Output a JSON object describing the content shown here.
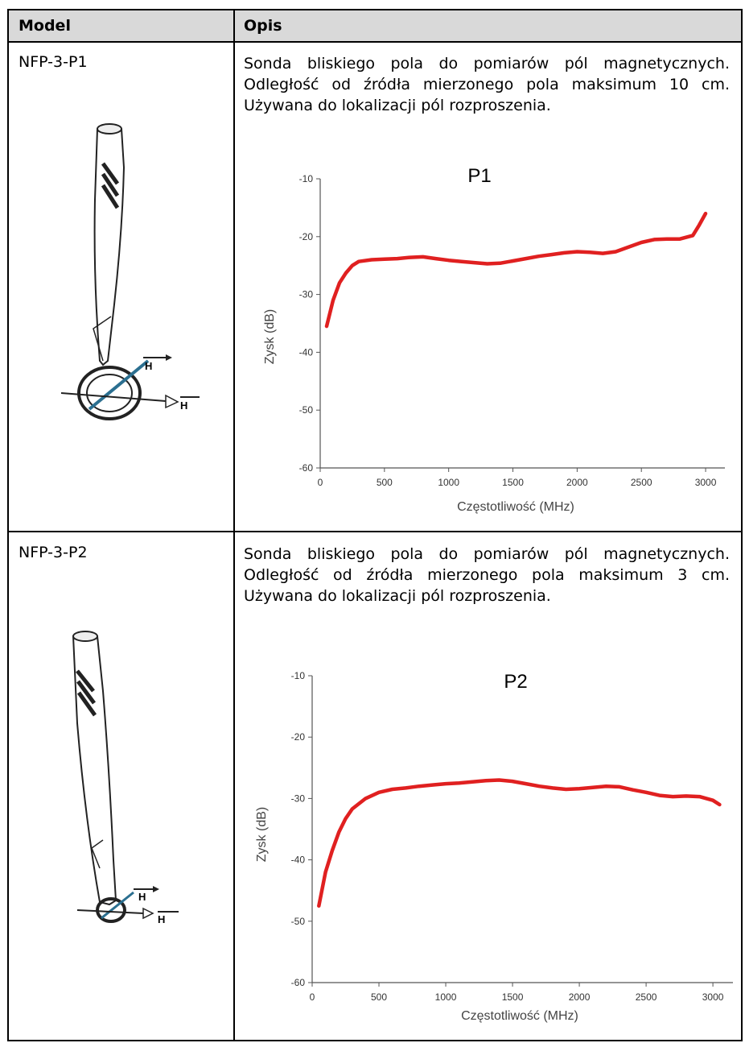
{
  "table": {
    "headers": {
      "model": "Model",
      "description": "Opis"
    },
    "rows": [
      {
        "model": "NFP-3-P1",
        "description": "Sonda bliskiego pola do pomiarów pól magnetycznych. Odległość od źródła mierzonego pola maksimum 10 cm. Używana do lokalizacji pól rozproszenia.",
        "probe_labels": [
          "H",
          "H"
        ]
      },
      {
        "model": "NFP-3-P2",
        "description": "Sonda bliskiego pola do pomiarów pól magnetycznych. Odległość od źródła mierzonego pola maksimum 3 cm. Używana do lokalizacji pól rozproszenia.",
        "probe_labels": [
          "H",
          "H"
        ]
      }
    ]
  },
  "chart_data": [
    {
      "type": "line",
      "title": "P1",
      "xlabel": "Częstotliwość (MHz)",
      "ylabel": "Zysk (dB)",
      "xlim": [
        0,
        3150
      ],
      "ylim": [
        -60,
        -10
      ],
      "x_ticks": [
        0,
        500,
        1000,
        1500,
        2000,
        2500,
        3000
      ],
      "y_ticks": [
        -10,
        -20,
        -30,
        -40,
        -50,
        -60
      ],
      "grid": false,
      "series": [
        {
          "color": "#e02020",
          "x": [
            50,
            100,
            150,
            200,
            250,
            300,
            400,
            500,
            600,
            700,
            800,
            900,
            1000,
            1100,
            1200,
            1300,
            1400,
            1500,
            1600,
            1700,
            1800,
            1900,
            2000,
            2100,
            2200,
            2300,
            2400,
            2500,
            2600,
            2700,
            2800,
            2900,
            2950,
            3000
          ],
          "y": [
            -35.5,
            -31,
            -28,
            -26.3,
            -25,
            -24.3,
            -24,
            -23.9,
            -23.8,
            -23.6,
            -23.5,
            -23.8,
            -24.1,
            -24.3,
            -24.5,
            -24.7,
            -24.6,
            -24.2,
            -23.8,
            -23.4,
            -23.1,
            -22.8,
            -22.6,
            -22.7,
            -22.9,
            -22.6,
            -21.8,
            -21,
            -20.5,
            -20.4,
            -20.4,
            -19.8,
            -18,
            -16
          ]
        }
      ]
    },
    {
      "type": "line",
      "title": "P2",
      "xlabel": "Częstotliwość (MHz)",
      "ylabel": "Zysk (dB)",
      "xlim": [
        0,
        3150
      ],
      "ylim": [
        -60,
        -10
      ],
      "x_ticks": [
        0,
        500,
        1000,
        1500,
        2000,
        2500,
        3000
      ],
      "y_ticks": [
        -10,
        -20,
        -30,
        -40,
        -50,
        -60
      ],
      "grid": false,
      "series": [
        {
          "color": "#e02020",
          "x": [
            50,
            100,
            150,
            200,
            250,
            300,
            400,
            500,
            600,
            700,
            800,
            900,
            1000,
            1100,
            1200,
            1300,
            1400,
            1500,
            1600,
            1700,
            1800,
            1900,
            2000,
            2100,
            2200,
            2300,
            2400,
            2500,
            2600,
            2700,
            2800,
            2900,
            3000,
            3050
          ],
          "y": [
            -47.5,
            -42,
            -38.5,
            -35.5,
            -33.3,
            -31.7,
            -30,
            -29,
            -28.5,
            -28.3,
            -28,
            -27.8,
            -27.6,
            -27.5,
            -27.3,
            -27.1,
            -27,
            -27.2,
            -27.6,
            -28,
            -28.3,
            -28.5,
            -28.4,
            -28.2,
            -28,
            -28.1,
            -28.6,
            -29,
            -29.5,
            -29.7,
            -29.6,
            -29.7,
            -30.3,
            -31
          ]
        }
      ]
    }
  ]
}
